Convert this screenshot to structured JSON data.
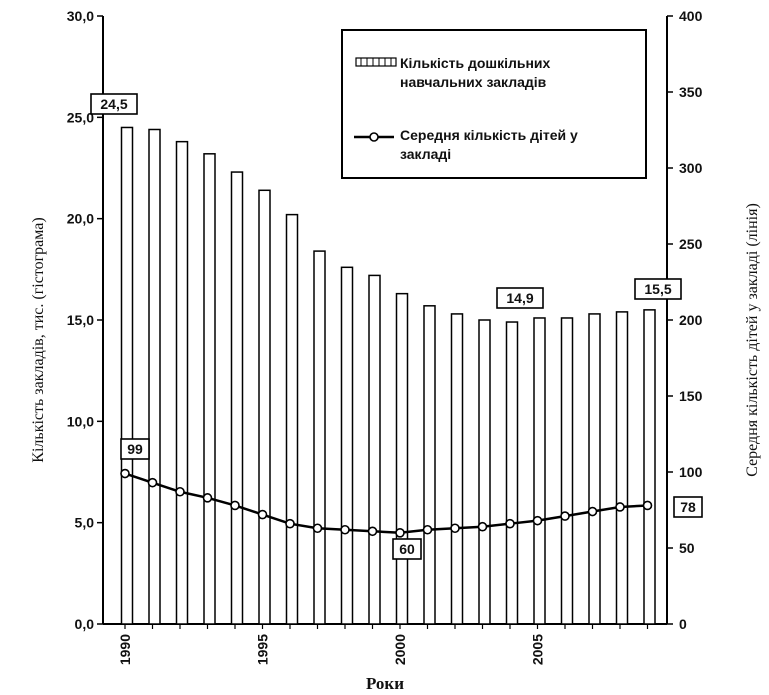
{
  "chart_data": {
    "type": "bar+line",
    "x_label": "Роки",
    "x": [
      1990,
      1991,
      1992,
      1993,
      1994,
      1995,
      1996,
      1997,
      1998,
      1999,
      2000,
      2001,
      2002,
      2003,
      2004,
      2005,
      2006,
      2007,
      2008,
      2009
    ],
    "x_tick_labels": [
      "1990",
      "1995",
      "2000",
      "2005"
    ],
    "left_axis": {
      "label": "Кількість закладів, тис. (гістограма)",
      "ylim": [
        0,
        30
      ],
      "ticks": [
        "0,0",
        "5,0",
        "10,0",
        "15,0",
        "20,0",
        "25,0",
        "30,0"
      ]
    },
    "right_axis": {
      "label": "Середня кількість дітей у закладі (лінія)",
      "ylim": [
        0,
        400
      ],
      "ticks": [
        "0",
        "50",
        "100",
        "150",
        "200",
        "250",
        "300",
        "350",
        "400"
      ]
    },
    "series": [
      {
        "name": "Кількість дошкільних навчальних закладів",
        "type": "bar",
        "axis": "left",
        "values": [
          24.5,
          24.4,
          23.8,
          23.2,
          22.3,
          21.4,
          20.2,
          18.4,
          17.6,
          17.2,
          16.3,
          15.7,
          15.3,
          15.0,
          14.9,
          15.1,
          15.1,
          15.3,
          15.4,
          15.5
        ]
      },
      {
        "name": "Середня кількість дітей у закладі",
        "type": "line",
        "axis": "right",
        "values": [
          99,
          93,
          87,
          83,
          78,
          72,
          66,
          63,
          62,
          61,
          60,
          62,
          63,
          64,
          66,
          68,
          71,
          74,
          77,
          78
        ]
      }
    ],
    "legend": {
      "position": "top-right",
      "bar_label_line1": "Кількість дошкільних",
      "bar_label_line2": "навчальних закладів",
      "line_label_line1": "Середня кількість дітей у",
      "line_label_line2": "закладі"
    },
    "annotations": [
      {
        "text": "24,5",
        "series": "bar",
        "x": 1990
      },
      {
        "text": "14,9",
        "series": "bar",
        "x": 2004
      },
      {
        "text": "15,5",
        "series": "bar",
        "x": 2009
      },
      {
        "text": "99",
        "series": "line",
        "x": 1990
      },
      {
        "text": "60",
        "series": "line",
        "x": 2000
      },
      {
        "text": "78",
        "series": "line",
        "x": 2009
      }
    ]
  }
}
